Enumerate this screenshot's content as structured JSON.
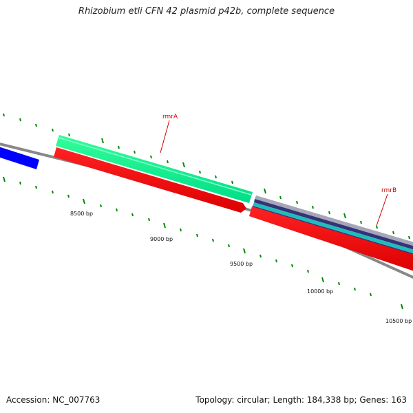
{
  "title": "Rhizobium etli CFN 42 plasmid p42b, complete sequence",
  "footer": {
    "accession": "Accession: NC_007763",
    "summary": "Topology: circular; Length: 184,338 bp; Genes: 163"
  },
  "genes": [
    {
      "name": "rmrA"
    },
    {
      "name": "rmrB"
    }
  ],
  "bp_labels": [
    "8500 bp",
    "9000 bp",
    "9500 bp",
    "10000 bp",
    "10500 bp"
  ],
  "colors": {
    "backbone": "#808080",
    "forward_cds": "#00ee88",
    "forward_cds_light": "#66ffb8",
    "reverse_cds": "#ff0000",
    "blue_feature": "#0000ff",
    "cyan_feature": "#22bbbb",
    "navy_feature": "#333377",
    "tick": "#008800",
    "gene_label": "#cc0000"
  }
}
